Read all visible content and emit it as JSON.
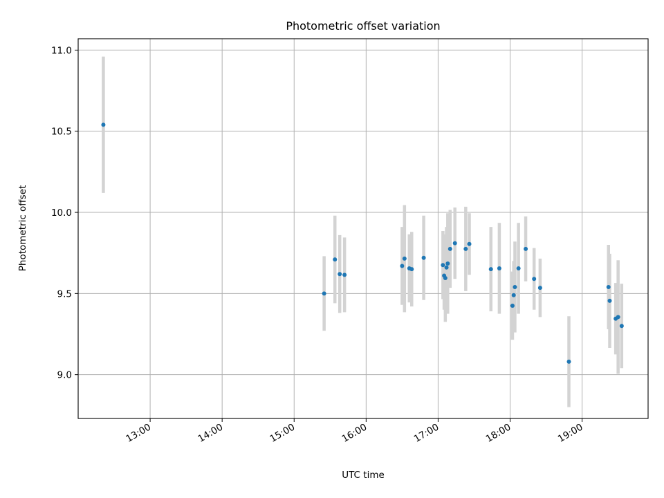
{
  "chart_data": {
    "type": "scatter",
    "title": "Photometric offset variation",
    "xlabel": "UTC time",
    "ylabel": "Photometric offset",
    "xlim": [
      "12:00",
      "19:55"
    ],
    "ylim": [
      8.73,
      11.07
    ],
    "xticks": [
      "13:00",
      "14:00",
      "15:00",
      "16:00",
      "17:00",
      "18:00",
      "19:00"
    ],
    "yticks": [
      "9.0",
      "9.5",
      "10.0",
      "10.5",
      "11.0"
    ],
    "grid": true,
    "marker_color": "#1f77b4",
    "errorbar_color": "#d3d3d3",
    "points": [
      {
        "t": "12:21",
        "y": 10.54,
        "err": 0.42
      },
      {
        "t": "15:25",
        "y": 9.5,
        "err": 0.23
      },
      {
        "t": "15:34",
        "y": 9.71,
        "err": 0.27
      },
      {
        "t": "15:38",
        "y": 9.62,
        "err": 0.24
      },
      {
        "t": "15:42",
        "y": 9.615,
        "err": 0.23
      },
      {
        "t": "16:30",
        "y": 9.67,
        "err": 0.24
      },
      {
        "t": "16:32",
        "y": 9.715,
        "err": 0.33
      },
      {
        "t": "16:36",
        "y": 9.655,
        "err": 0.21
      },
      {
        "t": "16:38",
        "y": 9.65,
        "err": 0.23
      },
      {
        "t": "16:48",
        "y": 9.72,
        "err": 0.26
      },
      {
        "t": "17:04",
        "y": 9.675,
        "err": 0.21
      },
      {
        "t": "17:05",
        "y": 9.61,
        "err": 0.21
      },
      {
        "t": "17:06",
        "y": 9.595,
        "err": 0.27
      },
      {
        "t": "17:07",
        "y": 9.66,
        "err": 0.25
      },
      {
        "t": "17:08",
        "y": 9.685,
        "err": 0.31
      },
      {
        "t": "17:10",
        "y": 9.775,
        "err": 0.24
      },
      {
        "t": "17:14",
        "y": 9.81,
        "err": 0.22
      },
      {
        "t": "17:23",
        "y": 9.775,
        "err": 0.26
      },
      {
        "t": "17:26",
        "y": 9.805,
        "err": 0.19
      },
      {
        "t": "17:44",
        "y": 9.65,
        "err": 0.26
      },
      {
        "t": "17:51",
        "y": 9.655,
        "err": 0.28
      },
      {
        "t": "18:02",
        "y": 9.425,
        "err": 0.21
      },
      {
        "t": "18:03",
        "y": 9.49,
        "err": 0.21
      },
      {
        "t": "18:04",
        "y": 9.54,
        "err": 0.28
      },
      {
        "t": "18:07",
        "y": 9.655,
        "err": 0.28
      },
      {
        "t": "18:13",
        "y": 9.775,
        "err": 0.2
      },
      {
        "t": "18:20",
        "y": 9.59,
        "err": 0.19
      },
      {
        "t": "18:25",
        "y": 9.535,
        "err": 0.18
      },
      {
        "t": "18:49",
        "y": 9.08,
        "err": 0.28
      },
      {
        "t": "19:22",
        "y": 9.54,
        "err": 0.26
      },
      {
        "t": "19:23",
        "y": 9.455,
        "err": 0.29
      },
      {
        "t": "19:28",
        "y": 9.345,
        "err": 0.22
      },
      {
        "t": "19:30",
        "y": 9.355,
        "err": 0.35
      },
      {
        "t": "19:33",
        "y": 9.3,
        "err": 0.26
      }
    ]
  }
}
